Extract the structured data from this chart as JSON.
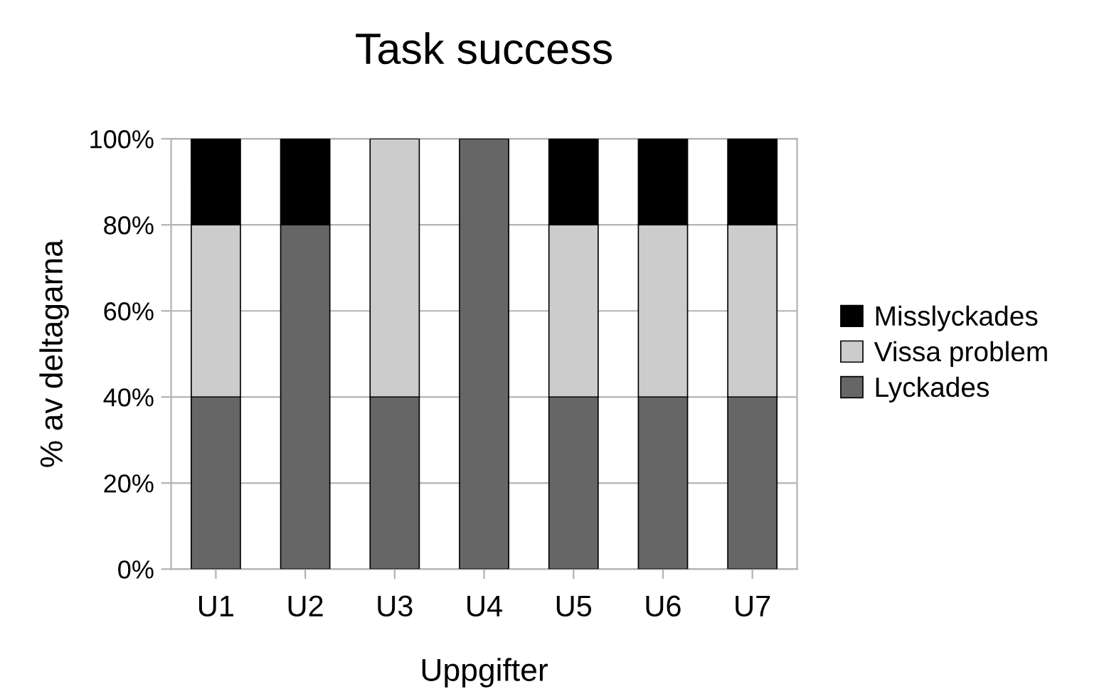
{
  "chart_data": {
    "type": "bar",
    "title": "Task success",
    "xlabel": "Uppgifter",
    "ylabel": "% av deltagarna",
    "categories": [
      "U1",
      "U2",
      "U3",
      "U4",
      "U5",
      "U6",
      "U7"
    ],
    "stacked": true,
    "series": [
      {
        "name": "Lyckades",
        "color": "#666666",
        "values": [
          40,
          80,
          40,
          100,
          40,
          40,
          40
        ]
      },
      {
        "name": "Vissa problem",
        "color": "#cccccc",
        "values": [
          40,
          0,
          60,
          0,
          40,
          40,
          40
        ]
      },
      {
        "name": "Misslyckades",
        "color": "#000000",
        "values": [
          20,
          20,
          0,
          0,
          20,
          20,
          20
        ]
      }
    ],
    "ylim": [
      0,
      100
    ],
    "yticks": [
      {
        "value": 0,
        "label": "0%"
      },
      {
        "value": 20,
        "label": "20%"
      },
      {
        "value": 40,
        "label": "40%"
      },
      {
        "value": 60,
        "label": "60%"
      },
      {
        "value": 80,
        "label": "80%"
      },
      {
        "value": 100,
        "label": "100%"
      }
    ],
    "grid": "y",
    "legend": "right"
  }
}
